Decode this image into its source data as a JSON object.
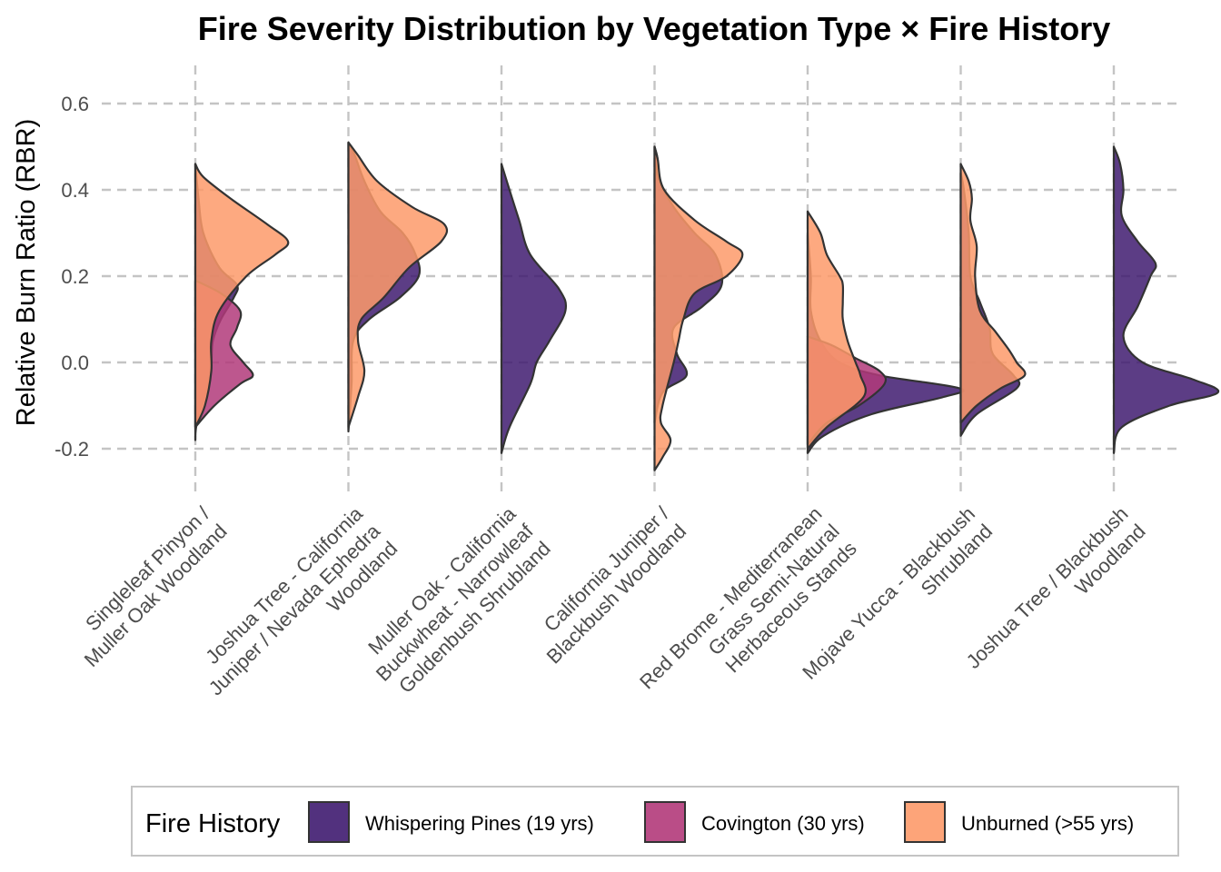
{
  "chart_data": {
    "type": "violin",
    "title": "Fire Severity Distribution by Vegetation Type × Fire History",
    "xlabel": "",
    "ylabel": "Relative Burn Ratio (RBR)",
    "ylim": [
      -0.3,
      0.66
    ],
    "yticks": [
      -0.2,
      0.0,
      0.2,
      0.4,
      0.6
    ],
    "ytick_labels": [
      "-0.2",
      "0.0",
      "0.2",
      "0.4",
      "0.6"
    ],
    "grid": true,
    "legend_position": "bottom",
    "categories": [
      {
        "lines": [
          "Singleleaf Pinyon /",
          "Muller Oak Woodland"
        ]
      },
      {
        "lines": [
          "Joshua Tree - California",
          "Juniper / Nevada Ephedra",
          "Woodland"
        ]
      },
      {
        "lines": [
          "Muller Oak - California",
          "Buckwheat - Narrowleaf",
          "Goldenbush Shrubland"
        ]
      },
      {
        "lines": [
          "California Juniper /",
          "Blackbush Woodland"
        ]
      },
      {
        "lines": [
          "Red Brome - Mediterranean",
          "Grass Semi-Natural",
          "Herbaceous Stands"
        ]
      },
      {
        "lines": [
          "Mojave Yucca - Blackbush",
          "Shrubland"
        ]
      },
      {
        "lines": [
          "Joshua Tree / Blackbush",
          "Woodland"
        ]
      }
    ],
    "legend": {
      "title": "Fire History",
      "items": [
        {
          "label": "Whispering Pines (19 yrs)",
          "color": "#3f1b70"
        },
        {
          "label": "Covington (30 yrs)",
          "color": "#b23a7a"
        },
        {
          "label": "Unburned (>55 yrs)",
          "color": "#fd9a6a"
        }
      ]
    },
    "series": [
      {
        "name": "Whispering Pines (19 yrs)",
        "color": "#3f1b70",
        "groups": [
          {
            "category": 0,
            "min": -0.18,
            "max": 0.46,
            "density": [
              [
                -0.18,
                0
              ],
              [
                -0.14,
                0.01
              ],
              [
                -0.05,
                0.08
              ],
              [
                0.0,
                0.1
              ],
              [
                0.05,
                0.11
              ],
              [
                0.1,
                0.16
              ],
              [
                0.15,
                0.24
              ],
              [
                0.18,
                0.26
              ],
              [
                0.22,
                0.15
              ],
              [
                0.3,
                0.05
              ],
              [
                0.38,
                0.02
              ],
              [
                0.46,
                0
              ]
            ]
          },
          {
            "category": 1,
            "min": -0.16,
            "max": 0.51,
            "density": [
              [
                -0.16,
                0
              ],
              [
                -0.05,
                0.02
              ],
              [
                0.05,
                0.03
              ],
              [
                0.1,
                0.13
              ],
              [
                0.15,
                0.32
              ],
              [
                0.2,
                0.44
              ],
              [
                0.25,
                0.42
              ],
              [
                0.3,
                0.34
              ],
              [
                0.35,
                0.2
              ],
              [
                0.42,
                0.1
              ],
              [
                0.48,
                0.04
              ],
              [
                0.51,
                0
              ]
            ]
          },
          {
            "category": 2,
            "min": -0.21,
            "max": 0.46,
            "density": [
              [
                -0.21,
                0
              ],
              [
                -0.15,
                0.05
              ],
              [
                -0.05,
                0.18
              ],
              [
                0.0,
                0.22
              ],
              [
                0.05,
                0.3
              ],
              [
                0.12,
                0.4
              ],
              [
                0.17,
                0.36
              ],
              [
                0.25,
                0.18
              ],
              [
                0.33,
                0.11
              ],
              [
                0.4,
                0.05
              ],
              [
                0.46,
                0
              ]
            ]
          },
          {
            "category": 3,
            "min": -0.14,
            "max": 0.5,
            "density": [
              [
                -0.14,
                0
              ],
              [
                -0.07,
                0.05
              ],
              [
                -0.03,
                0.2
              ],
              [
                0.02,
                0.14
              ],
              [
                0.08,
                0.12
              ],
              [
                0.13,
                0.3
              ],
              [
                0.18,
                0.42
              ],
              [
                0.25,
                0.38
              ],
              [
                0.3,
                0.25
              ],
              [
                0.36,
                0.12
              ],
              [
                0.43,
                0.02
              ],
              [
                0.47,
                0.02
              ],
              [
                0.5,
                0
              ]
            ]
          },
          {
            "category": 4,
            "min": -0.21,
            "max": 0.3,
            "density": [
              [
                -0.21,
                0
              ],
              [
                -0.17,
                0.1
              ],
              [
                -0.12,
                0.4
              ],
              [
                -0.08,
                0.85
              ],
              [
                -0.06,
                0.95
              ],
              [
                -0.03,
                0.45
              ],
              [
                0.0,
                0.2
              ],
              [
                0.05,
                0.08
              ],
              [
                0.12,
                0.02
              ],
              [
                0.2,
                0.02
              ],
              [
                0.3,
                0
              ]
            ]
          },
          {
            "category": 5,
            "min": -0.17,
            "max": 0.44,
            "density": [
              [
                -0.17,
                0
              ],
              [
                -0.12,
                0.1
              ],
              [
                -0.06,
                0.35
              ],
              [
                -0.03,
                0.33
              ],
              [
                0.02,
                0.2
              ],
              [
                0.08,
                0.18
              ],
              [
                0.14,
                0.12
              ],
              [
                0.2,
                0.06
              ],
              [
                0.3,
                0.05
              ],
              [
                0.4,
                0.02
              ],
              [
                0.44,
                0
              ]
            ]
          },
          {
            "category": 6,
            "min": -0.21,
            "max": 0.5,
            "density": [
              [
                -0.21,
                0
              ],
              [
                -0.15,
                0.05
              ],
              [
                -0.1,
                0.35
              ],
              [
                -0.07,
                0.65
              ],
              [
                -0.04,
                0.5
              ],
              [
                0.0,
                0.18
              ],
              [
                0.06,
                0.06
              ],
              [
                0.13,
                0.15
              ],
              [
                0.2,
                0.23
              ],
              [
                0.23,
                0.26
              ],
              [
                0.28,
                0.15
              ],
              [
                0.34,
                0.05
              ],
              [
                0.4,
                0.06
              ],
              [
                0.46,
                0.04
              ],
              [
                0.5,
                0
              ]
            ]
          }
        ]
      },
      {
        "name": "Covington (30 yrs)",
        "color": "#b23a7a",
        "groups": [
          {
            "category": 0,
            "min": -0.15,
            "max": 0.19,
            "density": [
              [
                -0.15,
                0
              ],
              [
                -0.1,
                0.12
              ],
              [
                -0.05,
                0.28
              ],
              [
                -0.03,
                0.36
              ],
              [
                0.0,
                0.3
              ],
              [
                0.04,
                0.22
              ],
              [
                0.08,
                0.26
              ],
              [
                0.12,
                0.28
              ],
              [
                0.16,
                0.16
              ],
              [
                0.19,
                0
              ]
            ]
          },
          {
            "category": 4,
            "min": -0.19,
            "max": 0.06,
            "density": [
              [
                -0.19,
                0
              ],
              [
                -0.14,
                0.12
              ],
              [
                -0.1,
                0.32
              ],
              [
                -0.05,
                0.48
              ],
              [
                -0.02,
                0.45
              ],
              [
                0.01,
                0.3
              ],
              [
                0.04,
                0.15
              ],
              [
                0.06,
                0
              ]
            ]
          }
        ]
      },
      {
        "name": "Unburned (>55 yrs)",
        "color": "#fd9a6a",
        "groups": [
          {
            "category": 0,
            "min": -0.15,
            "max": 0.46,
            "density": [
              [
                -0.15,
                0
              ],
              [
                -0.1,
                0.06
              ],
              [
                -0.02,
                0.1
              ],
              [
                0.05,
                0.1
              ],
              [
                0.12,
                0.15
              ],
              [
                0.2,
                0.32
              ],
              [
                0.25,
                0.5
              ],
              [
                0.28,
                0.58
              ],
              [
                0.32,
                0.45
              ],
              [
                0.38,
                0.22
              ],
              [
                0.43,
                0.05
              ],
              [
                0.46,
                0
              ]
            ]
          },
          {
            "category": 1,
            "min": -0.15,
            "max": 0.51,
            "density": [
              [
                -0.15,
                0
              ],
              [
                -0.08,
                0.06
              ],
              [
                -0.02,
                0.1
              ],
              [
                0.05,
                0.06
              ],
              [
                0.1,
                0.08
              ],
              [
                0.15,
                0.22
              ],
              [
                0.22,
                0.38
              ],
              [
                0.28,
                0.58
              ],
              [
                0.32,
                0.6
              ],
              [
                0.36,
                0.4
              ],
              [
                0.42,
                0.18
              ],
              [
                0.48,
                0.06
              ],
              [
                0.51,
                0
              ]
            ]
          },
          {
            "category": 3,
            "min": -0.25,
            "max": 0.5,
            "density": [
              [
                -0.25,
                0
              ],
              [
                -0.22,
                0.05
              ],
              [
                -0.18,
                0.1
              ],
              [
                -0.14,
                0.04
              ],
              [
                -0.1,
                0.05
              ],
              [
                0.0,
                0.12
              ],
              [
                0.05,
                0.15
              ],
              [
                0.1,
                0.18
              ],
              [
                0.16,
                0.25
              ],
              [
                0.2,
                0.45
              ],
              [
                0.25,
                0.55
              ],
              [
                0.28,
                0.45
              ],
              [
                0.33,
                0.25
              ],
              [
                0.4,
                0.06
              ],
              [
                0.47,
                0.02
              ],
              [
                0.5,
                0
              ]
            ]
          },
          {
            "category": 4,
            "min": -0.2,
            "max": 0.35,
            "density": [
              [
                -0.2,
                0
              ],
              [
                -0.15,
                0.12
              ],
              [
                -0.08,
                0.35
              ],
              [
                -0.03,
                0.33
              ],
              [
                0.0,
                0.3
              ],
              [
                0.05,
                0.25
              ],
              [
                0.1,
                0.22
              ],
              [
                0.14,
                0.22
              ],
              [
                0.18,
                0.22
              ],
              [
                0.2,
                0.2
              ],
              [
                0.25,
                0.12
              ],
              [
                0.3,
                0.08
              ],
              [
                0.35,
                0
              ]
            ]
          },
          {
            "category": 5,
            "min": -0.14,
            "max": 0.46,
            "density": [
              [
                -0.14,
                0
              ],
              [
                -0.1,
                0.1
              ],
              [
                -0.06,
                0.25
              ],
              [
                -0.03,
                0.4
              ],
              [
                0.0,
                0.35
              ],
              [
                0.03,
                0.3
              ],
              [
                0.07,
                0.22
              ],
              [
                0.12,
                0.12
              ],
              [
                0.2,
                0.09
              ],
              [
                0.27,
                0.1
              ],
              [
                0.33,
                0.06
              ],
              [
                0.38,
                0.07
              ],
              [
                0.42,
                0.05
              ],
              [
                0.46,
                0
              ]
            ]
          }
        ]
      }
    ]
  }
}
